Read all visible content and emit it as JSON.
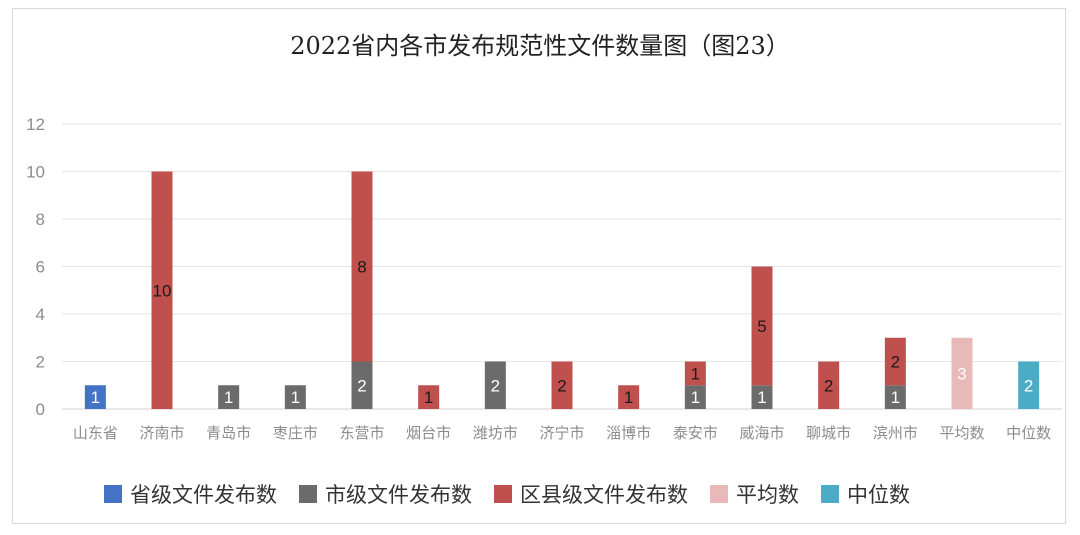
{
  "chart_data": {
    "type": "bar",
    "stacked": true,
    "title": "2022省内各市发布规范性文件数量图（图23）",
    "categories": [
      "山东省",
      "济南市",
      "青岛市",
      "枣庄市",
      "东营市",
      "烟台市",
      "潍坊市",
      "济宁市",
      "淄博市",
      "泰安市",
      "威海市",
      "聊城市",
      "滨州市",
      "平均数",
      "中位数"
    ],
    "series": [
      {
        "name": "省级文件发布数",
        "color": "#4472c4",
        "values": [
          1,
          0,
          0,
          0,
          0,
          0,
          0,
          0,
          0,
          0,
          0,
          0,
          0,
          0,
          0
        ],
        "labels": [
          "1",
          "",
          "",
          "",
          "",
          "",
          "",
          "",
          "",
          "",
          "",
          "",
          "",
          "",
          ""
        ]
      },
      {
        "name": "市级文件发布数",
        "color": "#6b6b6b",
        "values": [
          0,
          0,
          1,
          1,
          2,
          0,
          2,
          0,
          0,
          1,
          1,
          0,
          1,
          0,
          0
        ],
        "labels": [
          "",
          "",
          "1",
          "1",
          "2",
          "",
          "2",
          "",
          "",
          "1",
          "1",
          "",
          "1",
          "",
          ""
        ]
      },
      {
        "name": "区县级文件发布数",
        "color": "#c0504d",
        "values": [
          0,
          10,
          0,
          0,
          8,
          1,
          0,
          2,
          1,
          1,
          5,
          2,
          2,
          0,
          0
        ],
        "labels": [
          "",
          "10",
          "",
          "",
          "8",
          "1",
          "",
          "2",
          "1",
          "1",
          "5",
          "2",
          "2",
          "",
          ""
        ]
      },
      {
        "name": "平均数",
        "color": "#e8b9b8",
        "values": [
          0,
          0,
          0,
          0,
          0,
          0,
          0,
          0,
          0,
          0,
          0,
          0,
          0,
          3,
          0
        ],
        "labels": [
          "",
          "",
          "",
          "",
          "",
          "",
          "",
          "",
          "",
          "",
          "",
          "",
          "",
          "3",
          ""
        ]
      },
      {
        "name": "中位数",
        "color": "#4bacc6",
        "values": [
          0,
          0,
          0,
          0,
          0,
          0,
          0,
          0,
          0,
          0,
          0,
          0,
          0,
          0,
          2
        ],
        "labels": [
          "",
          "",
          "",
          "",
          "",
          "",
          "",
          "",
          "",
          "",
          "",
          "",
          "",
          "",
          "2"
        ]
      }
    ],
    "label_colors": [
      "#ffffff",
      "#ffffff",
      "#1a1a1a",
      "#ffffff",
      "#ffffff"
    ],
    "ylim": [
      0,
      12
    ],
    "yticks": [
      "0",
      "2",
      "4",
      "6",
      "8",
      "10",
      "12"
    ],
    "grid": true,
    "legend_position": "bottom"
  }
}
